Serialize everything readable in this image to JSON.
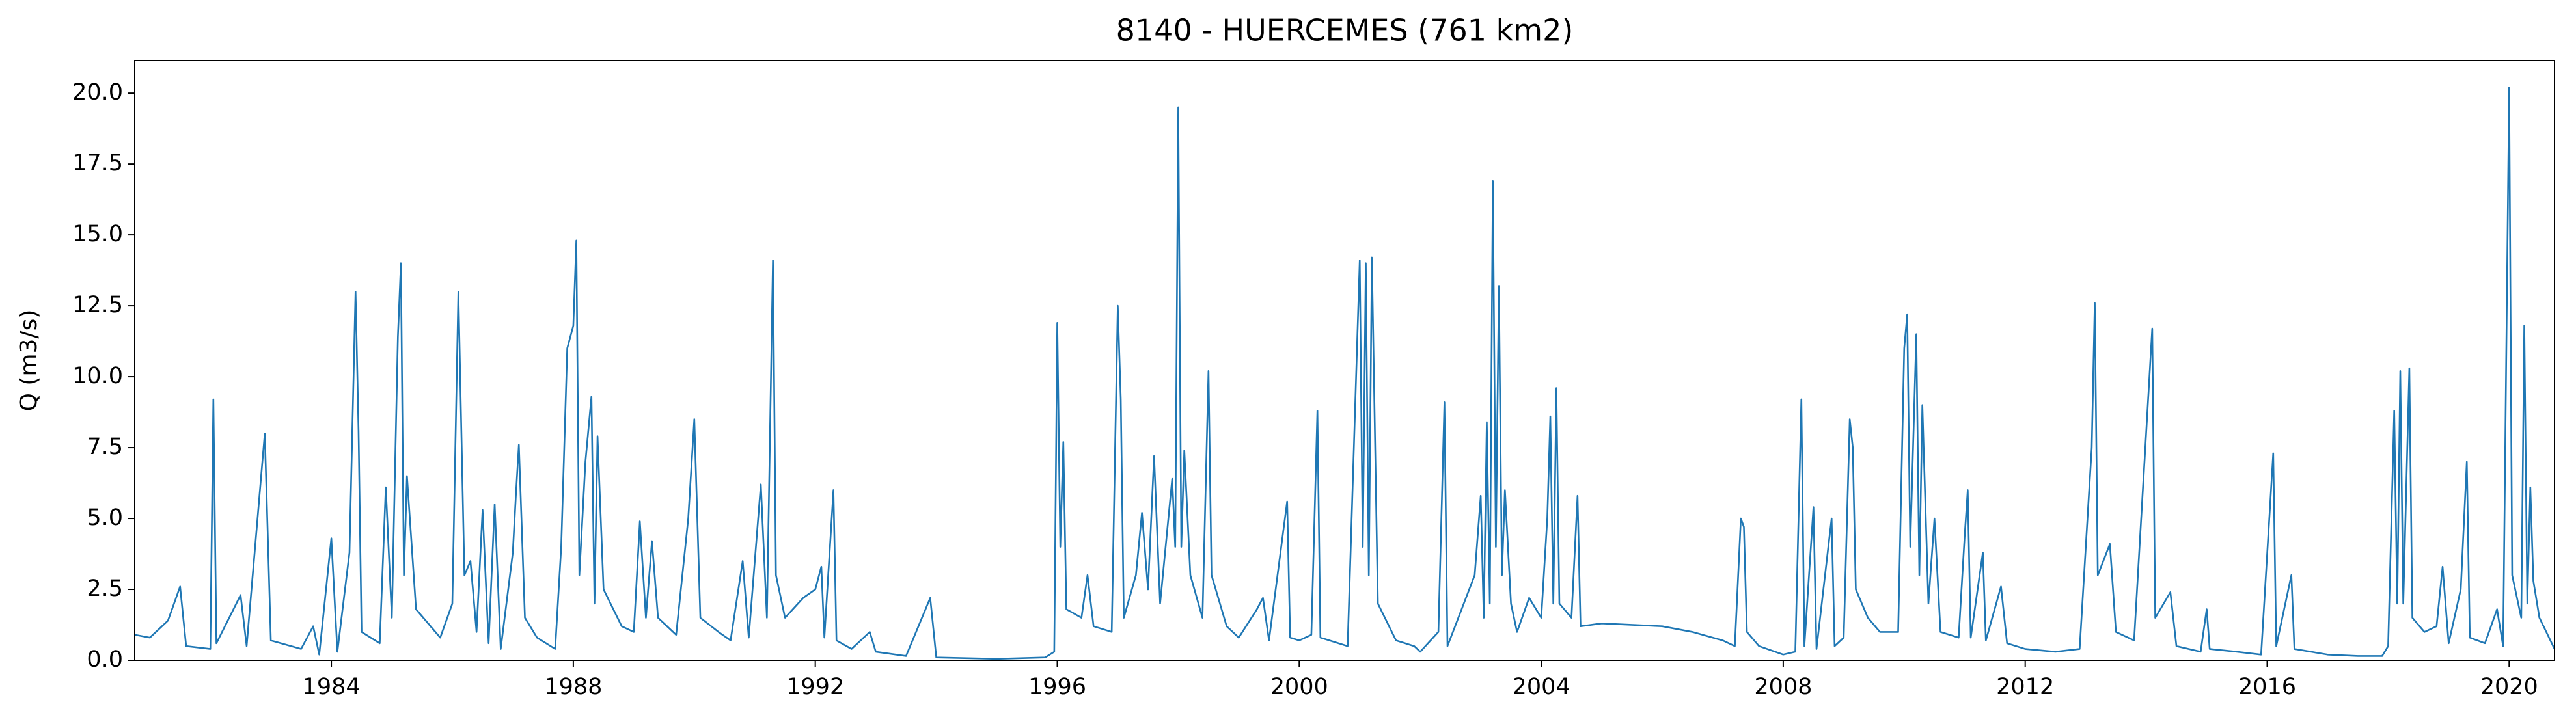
{
  "chart_data": {
    "type": "line",
    "title": "8140 - HUERCEMES (761 km2)",
    "ylabel": "Q (m3/s)",
    "xlim": [
      1980.75,
      2020.75
    ],
    "xticks": [
      1984,
      1988,
      1992,
      1996,
      2000,
      2004,
      2008,
      2012,
      2016,
      2020
    ],
    "ylim": [
      0,
      21.15
    ],
    "yticks": [
      {
        "value": 0,
        "label": "0.0"
      },
      {
        "value": 2.5,
        "label": "2.5"
      },
      {
        "value": 5,
        "label": "5.0"
      },
      {
        "value": 7.5,
        "label": "7.5"
      },
      {
        "value": 10,
        "label": "10.0"
      },
      {
        "value": 12.5,
        "label": "12.5"
      },
      {
        "value": 15,
        "label": "15.0"
      },
      {
        "value": 17.5,
        "label": "17.5"
      },
      {
        "value": 20,
        "label": "20.0"
      }
    ],
    "color": "#1f77b4",
    "x": [
      1980.75,
      1981.0,
      1981.3,
      1981.5,
      1981.6,
      1982.0,
      1982.05,
      1982.1,
      1982.5,
      1982.6,
      1982.9,
      1983.0,
      1983.5,
      1983.7,
      1983.8,
      1984.0,
      1984.1,
      1984.3,
      1984.4,
      1984.45,
      1984.5,
      1984.8,
      1984.9,
      1985.0,
      1985.1,
      1985.15,
      1985.2,
      1985.25,
      1985.4,
      1985.8,
      1986.0,
      1986.1,
      1986.2,
      1986.3,
      1986.4,
      1986.5,
      1986.6,
      1986.7,
      1986.8,
      1987.0,
      1987.05,
      1987.1,
      1987.2,
      1987.4,
      1987.7,
      1987.8,
      1987.9,
      1988.0,
      1988.05,
      1988.1,
      1988.2,
      1988.3,
      1988.35,
      1988.4,
      1988.5,
      1988.8,
      1989.0,
      1989.1,
      1989.2,
      1989.3,
      1989.4,
      1989.7,
      1989.9,
      1990.0,
      1990.1,
      1990.4,
      1990.6,
      1990.8,
      1990.9,
      1991.1,
      1991.2,
      1991.3,
      1991.35,
      1991.5,
      1991.8,
      1992.0,
      1992.1,
      1992.15,
      1992.3,
      1992.35,
      1992.6,
      1992.9,
      1993.0,
      1993.5,
      1993.9,
      1994.0,
      1995.0,
      1995.8,
      1995.95,
      1996.0,
      1996.05,
      1996.1,
      1996.15,
      1996.4,
      1996.5,
      1996.6,
      1996.9,
      1997.0,
      1997.05,
      1997.1,
      1997.3,
      1997.4,
      1997.5,
      1997.6,
      1997.7,
      1997.9,
      1997.95,
      1998.0,
      1998.05,
      1998.1,
      1998.2,
      1998.4,
      1998.5,
      1998.55,
      1998.8,
      1999.0,
      1999.3,
      1999.4,
      1999.5,
      1999.8,
      1999.85,
      2000.0,
      2000.2,
      2000.3,
      2000.35,
      2000.8,
      2001.0,
      2001.05,
      2001.1,
      2001.15,
      2001.2,
      2001.3,
      2001.6,
      2001.9,
      2002.0,
      2002.3,
      2002.4,
      2002.45,
      2002.9,
      2003.0,
      2003.05,
      2003.1,
      2003.15,
      2003.2,
      2003.25,
      2003.3,
      2003.35,
      2003.4,
      2003.5,
      2003.6,
      2003.8,
      2004.0,
      2004.1,
      2004.15,
      2004.2,
      2004.25,
      2004.3,
      2004.5,
      2004.6,
      2004.65,
      2005.0,
      2006.0,
      2006.5,
      2007.0,
      2007.2,
      2007.3,
      2007.35,
      2007.4,
      2007.6,
      2008.0,
      2008.2,
      2008.3,
      2008.35,
      2008.5,
      2008.55,
      2008.8,
      2008.85,
      2009.0,
      2009.1,
      2009.15,
      2009.2,
      2009.4,
      2009.6,
      2009.9,
      2010.0,
      2010.05,
      2010.1,
      2010.2,
      2010.25,
      2010.3,
      2010.4,
      2010.5,
      2010.6,
      2010.9,
      2011.0,
      2011.05,
      2011.1,
      2011.3,
      2011.35,
      2011.6,
      2011.7,
      2012.0,
      2012.5,
      2012.9,
      2013.1,
      2013.15,
      2013.2,
      2013.4,
      2013.5,
      2013.8,
      2014.1,
      2014.15,
      2014.4,
      2014.5,
      2014.9,
      2015.0,
      2015.05,
      2015.5,
      2015.9,
      2016.1,
      2016.15,
      2016.4,
      2016.45,
      2017.0,
      2017.5,
      2017.9,
      2018.0,
      2018.1,
      2018.15,
      2018.2,
      2018.25,
      2018.35,
      2018.4,
      2018.6,
      2018.8,
      2018.9,
      2019.0,
      2019.2,
      2019.3,
      2019.35,
      2019.6,
      2019.8,
      2019.9,
      2020.0,
      2020.05,
      2020.2,
      2020.25,
      2020.3,
      2020.35,
      2020.4,
      2020.5,
      2020.75
    ],
    "values": [
      0.9,
      0.8,
      1.4,
      2.6,
      0.5,
      0.4,
      9.2,
      0.6,
      2.3,
      0.5,
      8.0,
      0.7,
      0.4,
      1.2,
      0.2,
      4.3,
      0.3,
      3.8,
      13.0,
      8.1,
      1.0,
      0.6,
      6.1,
      1.5,
      11.4,
      14.0,
      3.0,
      6.5,
      1.8,
      0.8,
      2.0,
      13.0,
      3.0,
      3.5,
      1.0,
      5.3,
      0.6,
      5.5,
      0.4,
      3.8,
      5.8,
      7.6,
      1.5,
      0.8,
      0.4,
      4.0,
      11.0,
      11.8,
      14.8,
      3.0,
      7.0,
      9.3,
      2.0,
      7.9,
      2.5,
      1.2,
      1.0,
      4.9,
      1.5,
      4.2,
      1.5,
      0.9,
      5.0,
      8.5,
      1.5,
      1.0,
      0.7,
      3.5,
      0.8,
      6.2,
      1.5,
      14.1,
      3.0,
      1.5,
      2.2,
      2.5,
      3.3,
      0.8,
      6.0,
      0.7,
      0.4,
      1.0,
      0.3,
      0.15,
      2.2,
      0.1,
      0.05,
      0.1,
      0.3,
      11.9,
      4.0,
      7.7,
      1.8,
      1.5,
      3.0,
      1.2,
      1.0,
      12.5,
      9.2,
      1.5,
      3.0,
      5.2,
      2.5,
      7.2,
      2.0,
      6.4,
      4.0,
      19.5,
      4.0,
      7.4,
      3.0,
      1.5,
      10.2,
      3.0,
      1.2,
      0.8,
      1.8,
      2.2,
      0.7,
      5.6,
      0.8,
      0.7,
      0.9,
      8.8,
      0.8,
      0.5,
      14.1,
      4.0,
      14.0,
      3.0,
      14.2,
      2.0,
      0.7,
      0.5,
      0.3,
      1.0,
      9.1,
      0.5,
      3.0,
      5.8,
      1.5,
      8.4,
      2.0,
      16.9,
      4.0,
      13.2,
      3.0,
      6.0,
      2.0,
      1.0,
      2.2,
      1.5,
      5.0,
      8.6,
      2.0,
      9.6,
      2.0,
      1.5,
      5.8,
      1.2,
      1.3,
      1.2,
      1.0,
      0.7,
      0.5,
      5.0,
      4.7,
      1.0,
      0.5,
      0.2,
      0.3,
      9.2,
      0.5,
      5.4,
      0.4,
      5.0,
      0.5,
      0.8,
      8.5,
      7.5,
      2.5,
      1.5,
      1.0,
      1.0,
      11.0,
      12.2,
      4.0,
      11.5,
      3.0,
      9.0,
      2.0,
      5.0,
      1.0,
      0.8,
      4.4,
      6.0,
      0.8,
      3.8,
      0.7,
      2.6,
      0.6,
      0.4,
      0.3,
      0.4,
      7.5,
      12.6,
      3.0,
      4.1,
      1.0,
      0.7,
      11.7,
      1.5,
      2.4,
      0.5,
      0.3,
      1.8,
      0.4,
      0.3,
      0.2,
      7.3,
      0.5,
      3.0,
      0.4,
      0.2,
      0.15,
      0.15,
      0.5,
      8.8,
      2.0,
      10.2,
      2.0,
      10.3,
      1.5,
      1.0,
      1.2,
      3.3,
      0.6,
      2.5,
      7.0,
      0.8,
      0.6,
      1.8,
      0.5,
      20.2,
      3.0,
      1.5,
      11.8,
      2.0,
      6.1,
      2.8,
      1.5,
      0.4
    ]
  }
}
